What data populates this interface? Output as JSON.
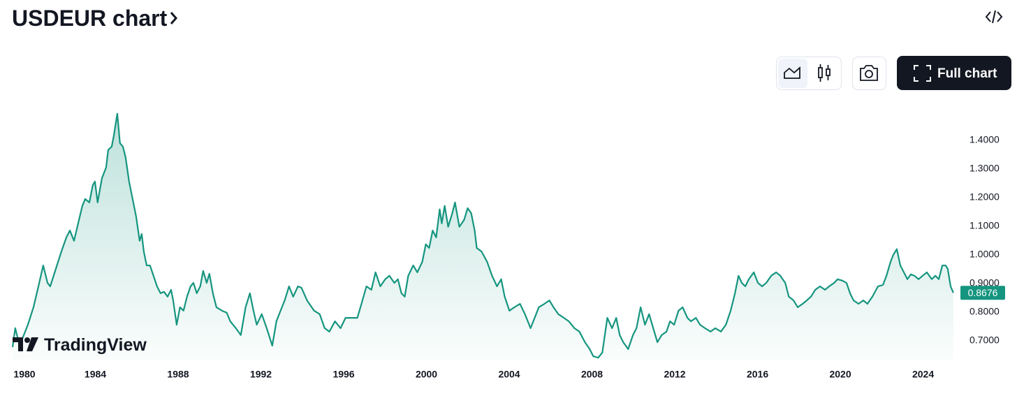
{
  "chart_data": {
    "type": "line",
    "title": "USDEUR chart",
    "watermark": "TradingView",
    "full_chart_button": "Full chart",
    "color": "#15957f",
    "xlim": [
      1980,
      2025.5
    ],
    "xticks": [
      1980,
      1984,
      1988,
      1992,
      1996,
      2000,
      2004,
      2008,
      2012,
      2016,
      2020,
      2024
    ],
    "ylim": [
      0.634,
      1.524
    ],
    "yticks": [
      {
        "value": 0.7,
        "label": "0.7000"
      },
      {
        "value": 0.8,
        "label": "0.8000"
      },
      {
        "value": 0.9,
        "label": "0.9000"
      },
      {
        "value": 1.0,
        "label": "1.0000"
      },
      {
        "value": 1.1,
        "label": "1.1000"
      },
      {
        "value": 1.2,
        "label": "1.2000"
      },
      {
        "value": 1.3,
        "label": "1.3000"
      },
      {
        "value": 1.4,
        "label": "1.4000"
      }
    ],
    "last_value": 0.8676,
    "x": [
      1980.0,
      1980.13,
      1980.34,
      1980.74,
      1981.01,
      1981.25,
      1981.48,
      1981.69,
      1981.82,
      1982.09,
      1982.36,
      1982.6,
      1982.77,
      1982.97,
      1983.17,
      1983.37,
      1983.51,
      1983.71,
      1983.88,
      1983.98,
      1984.11,
      1984.32,
      1984.52,
      1984.62,
      1984.79,
      1984.89,
      1985.06,
      1985.19,
      1985.33,
      1985.46,
      1985.63,
      1985.8,
      1985.97,
      1986.14,
      1986.24,
      1986.34,
      1986.48,
      1986.64,
      1986.81,
      1986.98,
      1987.15,
      1987.32,
      1987.49,
      1987.66,
      1987.76,
      1987.93,
      1988.09,
      1988.26,
      1988.43,
      1988.6,
      1988.74,
      1988.9,
      1989.07,
      1989.21,
      1989.38,
      1989.51,
      1989.68,
      1989.85,
      1990.12,
      1990.35,
      1990.52,
      1990.79,
      1991.03,
      1991.26,
      1991.47,
      1991.64,
      1991.8,
      1992.04,
      1992.28,
      1992.55,
      1992.75,
      1992.95,
      1993.15,
      1993.36,
      1993.56,
      1993.79,
      1993.96,
      1994.23,
      1994.57,
      1994.84,
      1995.08,
      1995.31,
      1995.58,
      1995.85,
      1996.09,
      1996.42,
      1996.66,
      1996.86,
      1997.1,
      1997.34,
      1997.54,
      1997.77,
      1998.01,
      1998.21,
      1998.45,
      1998.62,
      1998.79,
      1998.95,
      1999.12,
      1999.36,
      1999.56,
      1999.8,
      1999.97,
      2000.13,
      2000.3,
      2000.47,
      2000.64,
      2000.74,
      2000.88,
      2001.05,
      2001.25,
      2001.38,
      2001.59,
      2001.82,
      2001.99,
      2002.16,
      2002.33,
      2002.43,
      2002.66,
      2002.93,
      2003.17,
      2003.41,
      2003.61,
      2003.78,
      2004.01,
      2004.25,
      2004.52,
      2004.76,
      2005.03,
      2005.23,
      2005.43,
      2005.7,
      2005.94,
      2006.14,
      2006.37,
      2006.64,
      2006.88,
      2007.15,
      2007.39,
      2007.66,
      2007.89,
      2008.06,
      2008.3,
      2008.5,
      2008.74,
      2008.97,
      2009.17,
      2009.34,
      2009.51,
      2009.75,
      2009.98,
      2010.15,
      2010.35,
      2010.56,
      2010.76,
      2010.96,
      2011.16,
      2011.37,
      2011.6,
      2011.77,
      2011.97,
      2012.18,
      2012.38,
      2012.61,
      2012.78,
      2013.02,
      2013.22,
      2013.46,
      2013.73,
      2013.96,
      2014.23,
      2014.47,
      2014.7,
      2014.91,
      2015.08,
      2015.24,
      2015.41,
      2015.58,
      2015.82,
      2016.02,
      2016.22,
      2016.42,
      2016.66,
      2016.9,
      2017.1,
      2017.34,
      2017.51,
      2017.74,
      2017.94,
      2018.18,
      2018.38,
      2018.58,
      2018.79,
      2019.02,
      2019.26,
      2019.46,
      2019.7,
      2019.87,
      2020.1,
      2020.3,
      2020.47,
      2020.64,
      2020.88,
      2021.11,
      2021.31,
      2021.55,
      2021.82,
      2022.06,
      2022.23,
      2022.43,
      2022.56,
      2022.73,
      2022.9,
      2023.07,
      2023.24,
      2023.41,
      2023.58,
      2023.78,
      2023.98,
      2024.18,
      2024.42,
      2024.59,
      2024.76,
      2024.93,
      2025.09,
      2025.19,
      2025.33,
      2025.46
    ],
    "values": [
      0.678,
      0.744,
      0.683,
      0.756,
      0.817,
      0.89,
      0.963,
      0.902,
      0.89,
      0.951,
      1.012,
      1.061,
      1.085,
      1.049,
      1.11,
      1.171,
      1.195,
      1.183,
      1.244,
      1.256,
      1.183,
      1.268,
      1.305,
      1.366,
      1.378,
      1.415,
      1.493,
      1.39,
      1.378,
      1.341,
      1.256,
      1.195,
      1.134,
      1.049,
      1.073,
      1.012,
      0.963,
      0.963,
      0.927,
      0.89,
      0.866,
      0.871,
      0.854,
      0.878,
      0.841,
      0.756,
      0.817,
      0.805,
      0.854,
      0.89,
      0.902,
      0.866,
      0.89,
      0.944,
      0.902,
      0.934,
      0.866,
      0.817,
      0.805,
      0.798,
      0.768,
      0.744,
      0.72,
      0.817,
      0.866,
      0.805,
      0.756,
      0.793,
      0.744,
      0.683,
      0.768,
      0.805,
      0.841,
      0.89,
      0.854,
      0.89,
      0.885,
      0.841,
      0.805,
      0.793,
      0.744,
      0.732,
      0.768,
      0.744,
      0.78,
      0.78,
      0.78,
      0.829,
      0.89,
      0.878,
      0.939,
      0.89,
      0.915,
      0.927,
      0.902,
      0.915,
      0.866,
      0.854,
      0.927,
      0.963,
      0.939,
      0.976,
      1.037,
      1.024,
      1.085,
      1.061,
      1.159,
      1.11,
      1.171,
      1.098,
      1.146,
      1.183,
      1.098,
      1.122,
      1.163,
      1.146,
      1.085,
      1.024,
      1.012,
      0.976,
      0.927,
      0.89,
      0.915,
      0.854,
      0.805,
      0.817,
      0.829,
      0.793,
      0.744,
      0.78,
      0.817,
      0.829,
      0.841,
      0.817,
      0.793,
      0.78,
      0.768,
      0.744,
      0.732,
      0.695,
      0.671,
      0.646,
      0.641,
      0.659,
      0.78,
      0.744,
      0.78,
      0.72,
      0.695,
      0.671,
      0.72,
      0.744,
      0.817,
      0.756,
      0.793,
      0.744,
      0.695,
      0.72,
      0.732,
      0.768,
      0.756,
      0.805,
      0.817,
      0.78,
      0.768,
      0.78,
      0.756,
      0.744,
      0.732,
      0.744,
      0.732,
      0.756,
      0.805,
      0.866,
      0.927,
      0.902,
      0.89,
      0.915,
      0.939,
      0.902,
      0.89,
      0.902,
      0.927,
      0.939,
      0.927,
      0.902,
      0.854,
      0.841,
      0.817,
      0.829,
      0.841,
      0.854,
      0.878,
      0.89,
      0.878,
      0.89,
      0.902,
      0.915,
      0.91,
      0.902,
      0.866,
      0.841,
      0.829,
      0.841,
      0.829,
      0.854,
      0.89,
      0.895,
      0.927,
      0.976,
      1.0,
      1.02,
      0.963,
      0.939,
      0.915,
      0.932,
      0.927,
      0.915,
      0.927,
      0.939,
      0.915,
      0.927,
      0.915,
      0.963,
      0.963,
      0.951,
      0.89,
      0.8676
    ]
  }
}
